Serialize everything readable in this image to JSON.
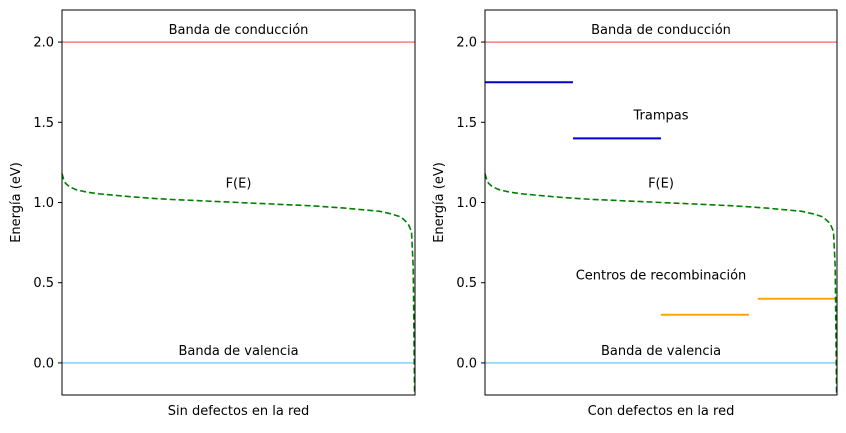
{
  "chart_data": [
    {
      "type": "line",
      "xlabel": "Sin defectos en la red",
      "ylabel": "Energía (eV)",
      "ylim": [
        -0.2,
        2.2
      ],
      "yticks": [
        0.0,
        0.5,
        1.0,
        1.5,
        2.0
      ],
      "yticklabels": [
        "0.0",
        "0.5",
        "1.0",
        "1.5",
        "2.0"
      ],
      "xticks": [],
      "grid": false,
      "bands": [
        {
          "label": "Banda de conducción",
          "y": 2.0,
          "color": "#f08080"
        },
        {
          "label": "Banda de valencia",
          "y": 0.0,
          "color": "#87cefa"
        }
      ],
      "fermi_curve": {
        "label": "F(E)",
        "color": "#008000",
        "style": "dashed",
        "x": [
          0.0,
          0.005,
          0.01,
          0.02,
          0.04,
          0.07,
          0.1,
          0.15,
          0.2,
          0.25,
          0.3,
          0.35,
          0.4,
          0.45,
          0.5,
          0.55,
          0.6,
          0.65,
          0.7,
          0.75,
          0.8,
          0.85,
          0.9,
          0.93,
          0.96,
          0.98,
          0.99,
          0.995,
          0.999
        ],
        "y": [
          1.18,
          1.14,
          1.12,
          1.1,
          1.08,
          1.065,
          1.055,
          1.045,
          1.035,
          1.027,
          1.02,
          1.015,
          1.01,
          1.005,
          1.0,
          0.995,
          0.99,
          0.985,
          0.98,
          0.973,
          0.965,
          0.955,
          0.945,
          0.93,
          0.91,
          0.87,
          0.82,
          0.6,
          -0.2
        ]
      }
    },
    {
      "type": "line",
      "xlabel": "Con defectos en la red",
      "ylabel": "Energía (eV)",
      "ylim": [
        -0.2,
        2.2
      ],
      "yticks": [
        0.0,
        0.5,
        1.0,
        1.5,
        2.0
      ],
      "yticklabels": [
        "0.0",
        "0.5",
        "1.0",
        "1.5",
        "2.0"
      ],
      "xticks": [],
      "grid": false,
      "bands": [
        {
          "label": "Banda de conducción",
          "y": 2.0,
          "color": "#f08080"
        },
        {
          "label": "Banda de valencia",
          "y": 0.0,
          "color": "#87cefa"
        }
      ],
      "fermi_curve": {
        "label": "F(E)",
        "color": "#008000",
        "style": "dashed",
        "x": [
          0.0,
          0.005,
          0.01,
          0.02,
          0.04,
          0.07,
          0.1,
          0.15,
          0.2,
          0.25,
          0.3,
          0.35,
          0.4,
          0.45,
          0.5,
          0.55,
          0.6,
          0.65,
          0.7,
          0.75,
          0.8,
          0.85,
          0.9,
          0.93,
          0.96,
          0.98,
          0.99,
          0.995,
          0.999
        ],
        "y": [
          1.18,
          1.14,
          1.12,
          1.1,
          1.08,
          1.065,
          1.055,
          1.045,
          1.035,
          1.027,
          1.02,
          1.015,
          1.01,
          1.005,
          1.0,
          0.995,
          0.99,
          0.985,
          0.98,
          0.973,
          0.965,
          0.955,
          0.945,
          0.93,
          0.91,
          0.87,
          0.82,
          0.6,
          -0.2
        ]
      },
      "level_groups": [
        {
          "label": "Trampas",
          "label_y": 1.55,
          "color": "#0000cd",
          "segments": [
            {
              "x0": 0.0,
              "x1": 0.25,
              "y": 1.75
            },
            {
              "x0": 0.25,
              "x1": 0.5,
              "y": 1.4
            }
          ]
        },
        {
          "label": "Centros de recombinación",
          "label_y": 0.55,
          "color": "#ffa500",
          "segments": [
            {
              "x0": 0.5,
              "x1": 0.75,
              "y": 0.3
            },
            {
              "x0": 0.775,
              "x1": 1.0,
              "y": 0.4
            }
          ]
        }
      ]
    }
  ]
}
